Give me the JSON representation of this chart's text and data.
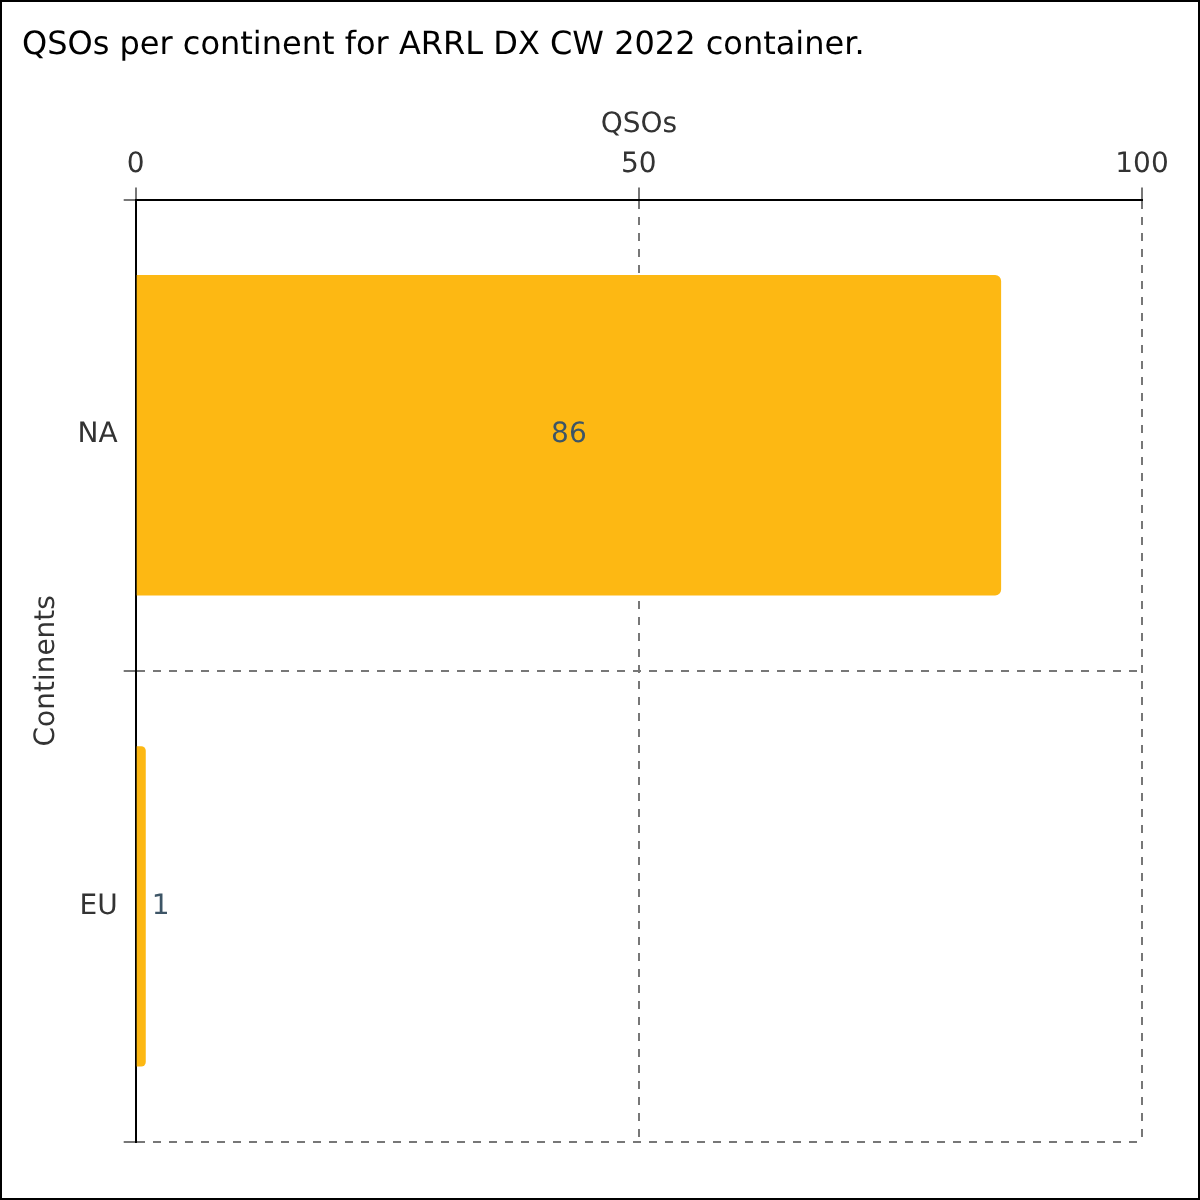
{
  "chart_data": {
    "type": "bar",
    "orientation": "horizontal",
    "title": "QSOs per continent for ARRL DX CW 2022 container.",
    "xlabel": "QSOs",
    "ylabel": "Continents",
    "categories": [
      "NA",
      "EU"
    ],
    "values": [
      86,
      1
    ],
    "color": "#fdb813",
    "xlim": [
      0,
      100
    ],
    "xticks": [
      0,
      50,
      100
    ],
    "grid": true,
    "data_labels": true
  }
}
